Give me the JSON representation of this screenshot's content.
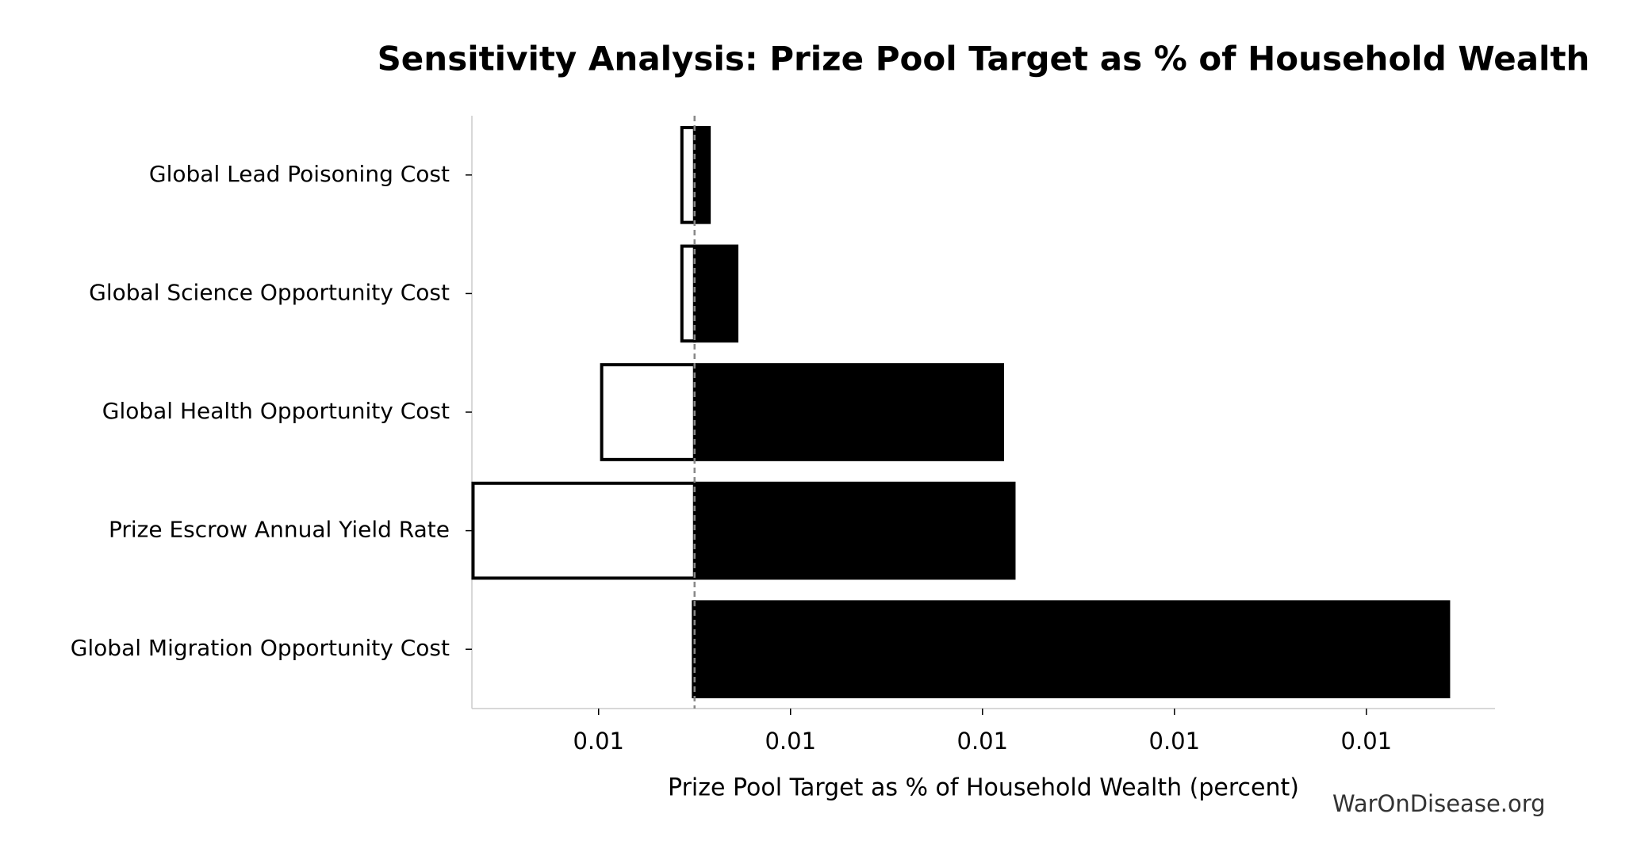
{
  "chart_data": {
    "type": "tornado",
    "title": "Sensitivity Analysis: Prize Pool Target as % of Household Wealth",
    "xlabel": "Prize Pool Target as % of Household Wealth (percent)",
    "watermark": "WarOnDisease.org",
    "categories": [
      "Global Lead Poisoning Cost",
      "Global Science Opportunity Cost",
      "Global Health Opportunity Cost",
      "Prize Escrow Annual Yield Rate",
      "Global Migration Opportunity Cost"
    ],
    "baseline": 0.00975,
    "low_values": [
      0.009717,
      0.009717,
      0.009508,
      0.009173,
      0.009747
    ],
    "high_values": [
      0.009788,
      0.00986,
      0.010552,
      0.010582,
      0.011714
    ],
    "low_color": "#ffffff",
    "high_color": "#000000",
    "xlim": [
      0.00917,
      0.011835
    ],
    "xticks": [
      {
        "value": 0.0095,
        "label": "0.01"
      },
      {
        "value": 0.01,
        "label": "0.01"
      },
      {
        "value": 0.0105,
        "label": "0.01"
      },
      {
        "value": 0.011,
        "label": "0.01"
      },
      {
        "value": 0.0115,
        "label": "0.01"
      }
    ]
  }
}
